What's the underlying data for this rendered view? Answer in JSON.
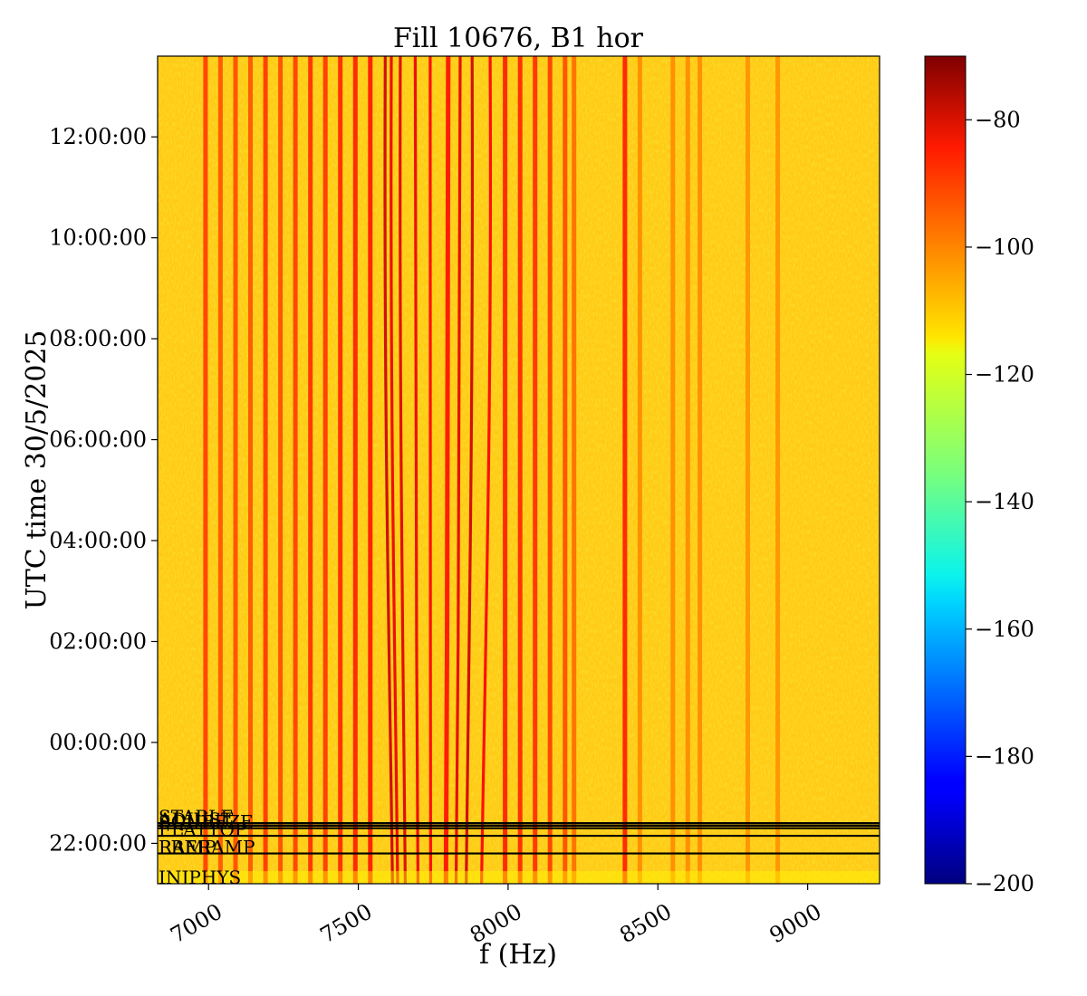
{
  "chart_data": {
    "type": "heatmap",
    "title": "Fill 10676, B1 hor",
    "xlabel": "f (Hz)",
    "ylabel": "UTC time 30/5/2025",
    "xlim": [
      6830,
      9240
    ],
    "x_ticks": [
      {
        "value": 7000,
        "label": "7000"
      },
      {
        "value": 7500,
        "label": "7500"
      },
      {
        "value": 8000,
        "label": "8000"
      },
      {
        "value": 8500,
        "label": "8500"
      },
      {
        "value": 9000,
        "label": "9000"
      }
    ],
    "y_axis_hours_since_midnight": [
      -2.8,
      13.6
    ],
    "y_ticks": [
      {
        "value": -2,
        "label": "22:00:00"
      },
      {
        "value": 0,
        "label": "00:00:00"
      },
      {
        "value": 2,
        "label": "02:00:00"
      },
      {
        "value": 4,
        "label": "04:00:00"
      },
      {
        "value": 6,
        "label": "06:00:00"
      },
      {
        "value": 8,
        "label": "08:00:00"
      },
      {
        "value": 10,
        "label": "10:00:00"
      },
      {
        "value": 12,
        "label": "12:00:00"
      }
    ],
    "colorbar": {
      "colormap": "jet",
      "range": [
        -200,
        -70
      ],
      "ticks": [
        {
          "value": -80,
          "label": "−80"
        },
        {
          "value": -100,
          "label": "−100"
        },
        {
          "value": -120,
          "label": "−120"
        },
        {
          "value": -140,
          "label": "−140"
        },
        {
          "value": -160,
          "label": "−160"
        },
        {
          "value": -180,
          "label": "−180"
        },
        {
          "value": -200,
          "label": "−200"
        }
      ]
    },
    "beam_mode_markers": [
      {
        "label": "INJPHYS",
        "start": -2.8
      },
      {
        "label": "PRERAMP",
        "start": -2.2
      },
      {
        "label": "RAMP",
        "start": -2.2
      },
      {
        "label": "FLATTOP",
        "start": -1.85
      },
      {
        "label": "SQUEEZE",
        "start": -1.7
      },
      {
        "label": "ADJUST",
        "start": -1.65
      },
      {
        "label": "STABLE",
        "start": -1.6
      }
    ],
    "background_level": -106,
    "lines": [
      {
        "f": 6990,
        "level": -94
      },
      {
        "f": 7040,
        "level": -97
      },
      {
        "f": 7090,
        "level": -96
      },
      {
        "f": 7140,
        "level": -97
      },
      {
        "f": 7190,
        "level": -93
      },
      {
        "f": 7240,
        "level": -96
      },
      {
        "f": 7290,
        "level": -94
      },
      {
        "f": 7340,
        "level": -92
      },
      {
        "f": 7390,
        "level": -93
      },
      {
        "f": 7440,
        "level": -91
      },
      {
        "f": 7490,
        "level": -90
      },
      {
        "f": 7540,
        "level": -89
      },
      {
        "f": 7590,
        "level": -80
      },
      {
        "f": 7610,
        "level": -84
      },
      {
        "f": 7640,
        "level": -82
      },
      {
        "f": 7690,
        "level": -84
      },
      {
        "f": 7740,
        "level": -86
      },
      {
        "f": 7800,
        "level": -88
      },
      {
        "f": 7840,
        "level": -83
      },
      {
        "f": 7880,
        "level": -80
      },
      {
        "f": 7940,
        "level": -86
      },
      {
        "f": 7990,
        "level": -90
      },
      {
        "f": 8040,
        "level": -91
      },
      {
        "f": 8090,
        "level": -92
      },
      {
        "f": 8140,
        "level": -94
      },
      {
        "f": 8190,
        "level": -96
      },
      {
        "f": 8220,
        "level": -100
      },
      {
        "f": 8390,
        "level": -90
      },
      {
        "f": 8440,
        "level": -104
      },
      {
        "f": 8550,
        "level": -104
      },
      {
        "f": 8600,
        "level": -104
      },
      {
        "f": 8640,
        "level": -104
      },
      {
        "f": 8800,
        "level": -105
      },
      {
        "f": 8900,
        "level": -105
      }
    ]
  }
}
